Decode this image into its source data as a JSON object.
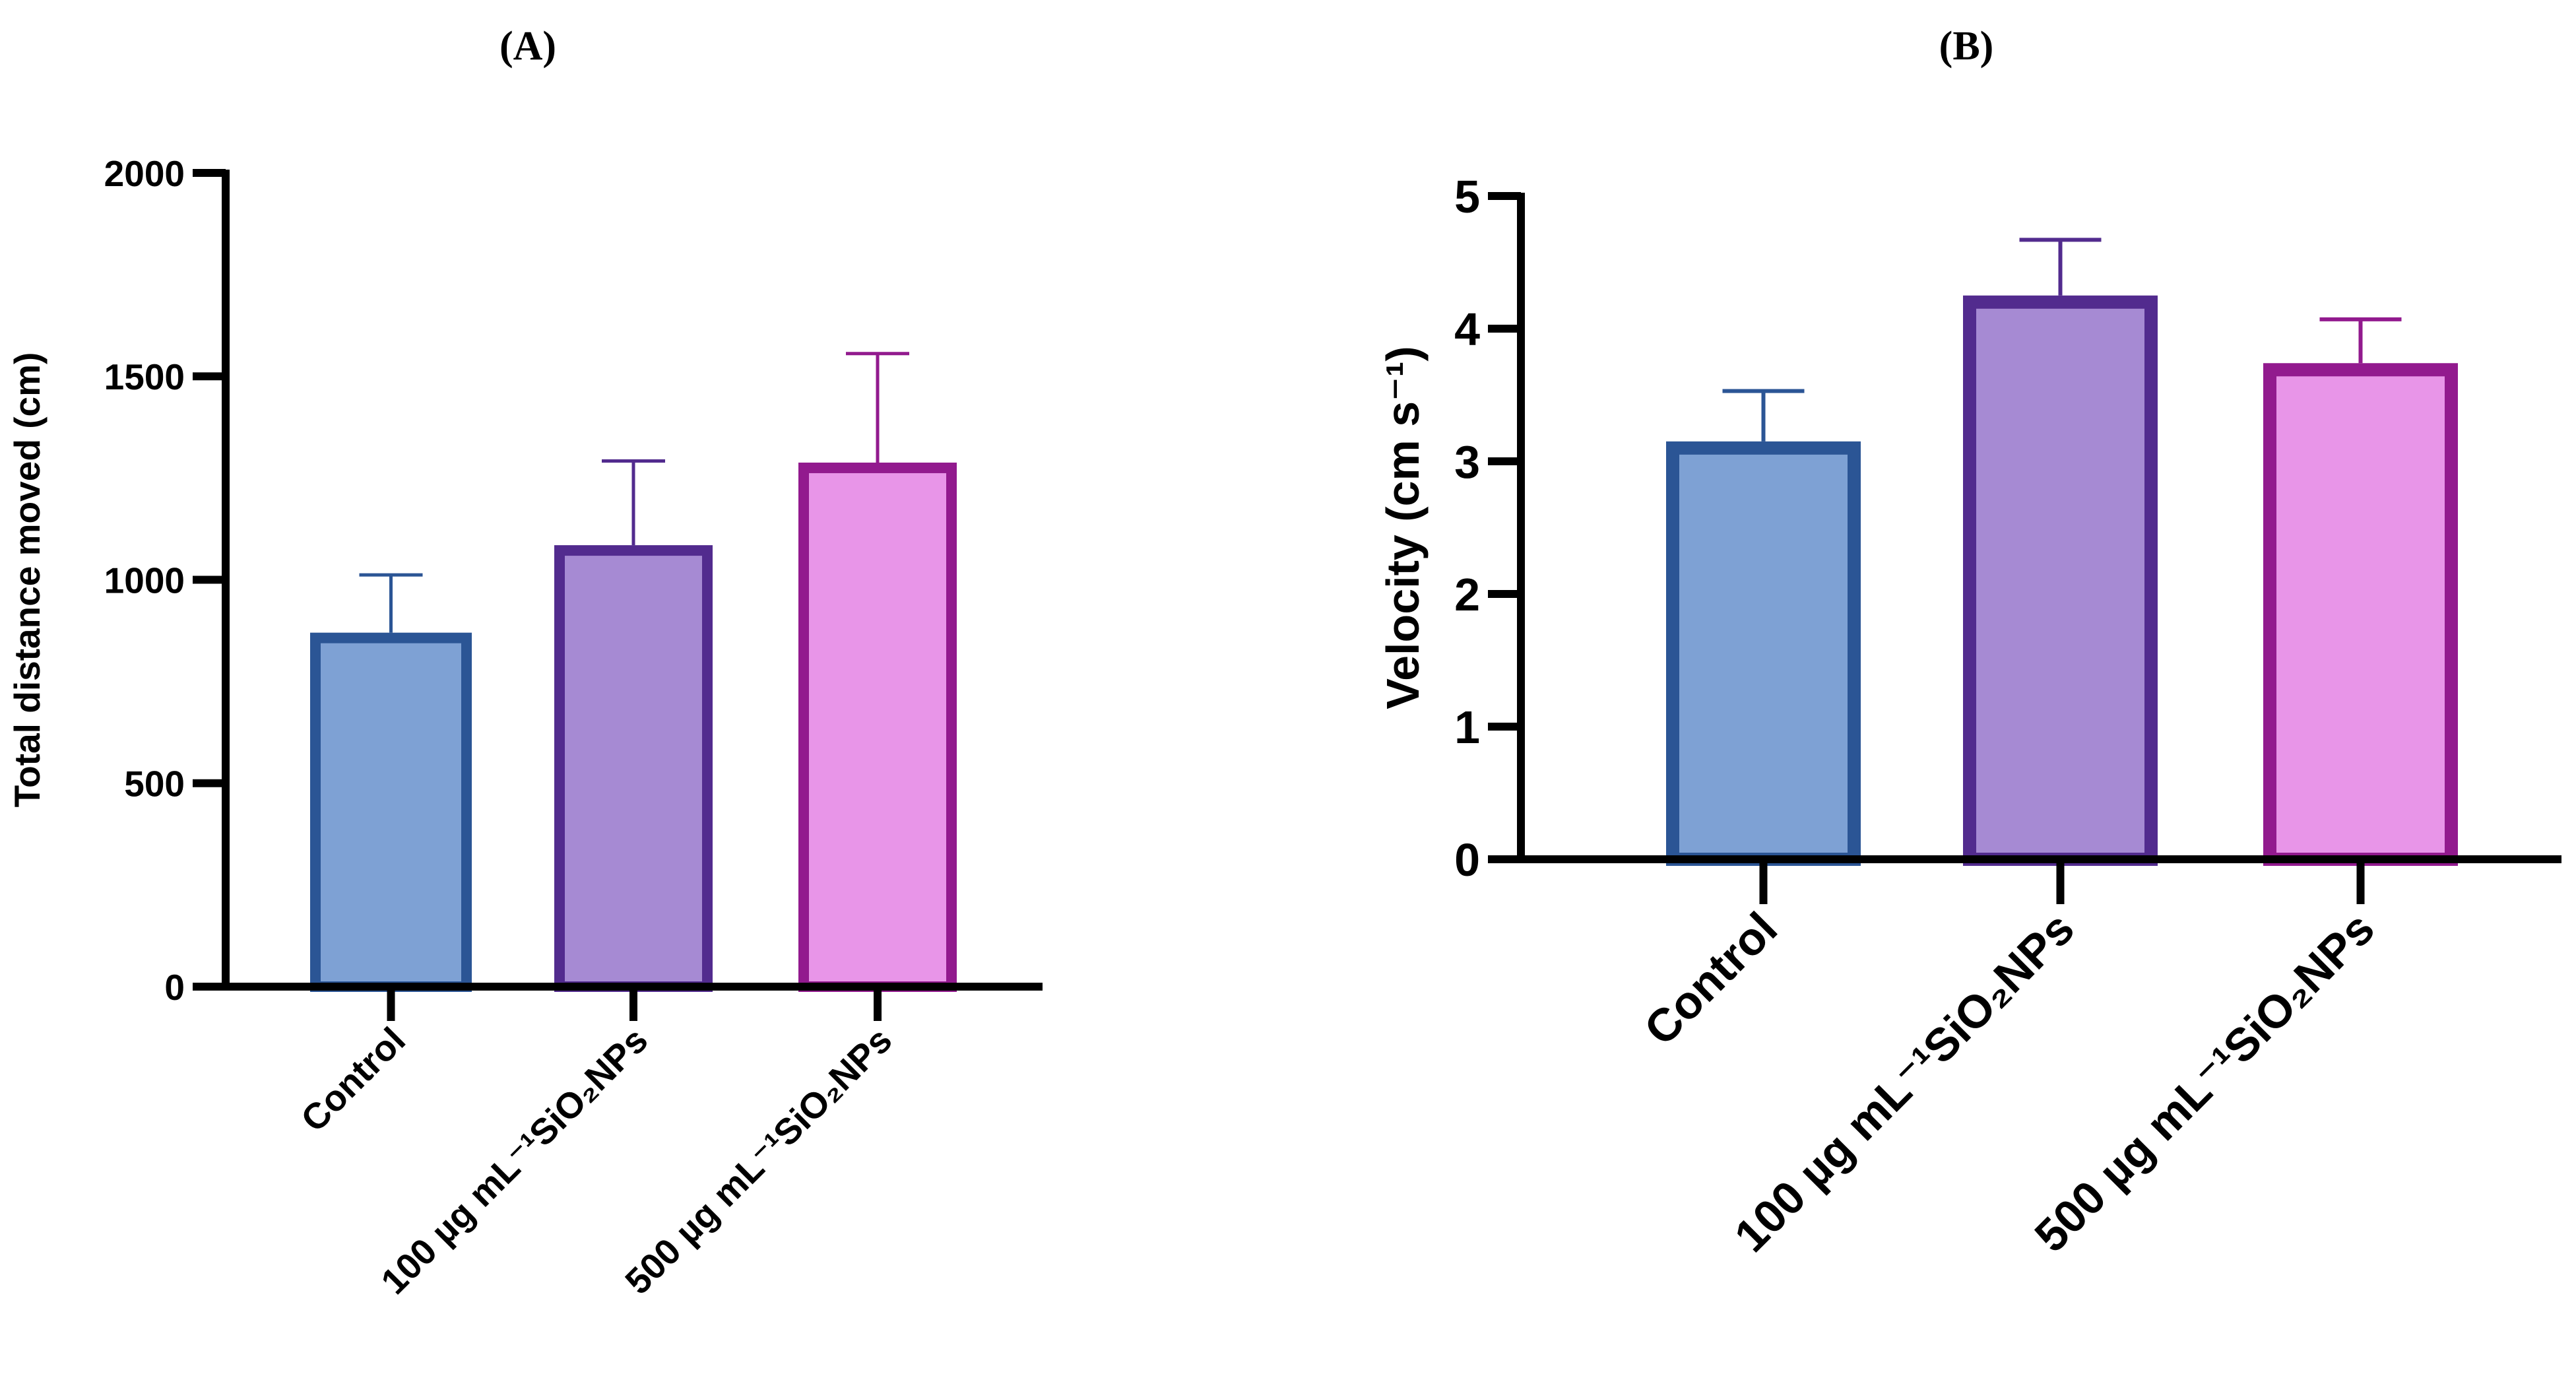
{
  "chart_data": [
    {
      "type": "bar",
      "panel": "(A)",
      "title": "",
      "xlabel": "",
      "ylabel": "Total distance moved (cm)",
      "ylim": [
        0,
        2000
      ],
      "yticks": [
        0,
        500,
        1000,
        1500,
        2000
      ],
      "categories": [
        "Control",
        "100 µg mL⁻¹SiO₂NPs",
        "500 µg mL⁻¹SiO₂NPs"
      ],
      "values": [
        870,
        1085,
        1288
      ],
      "error_upper": [
        1012,
        1292,
        1556
      ],
      "fill_colors": [
        "#7ea1d4",
        "#a68ad3",
        "#e895e8"
      ],
      "edge_colors": [
        "#2b5595",
        "#522b8e",
        "#921a8e"
      ],
      "grid": false
    },
    {
      "type": "bar",
      "panel": "(B)",
      "title": "",
      "xlabel": "",
      "ylabel": "Velocity (cm s⁻¹)",
      "ylim": [
        0,
        5
      ],
      "yticks": [
        0,
        1,
        2,
        3,
        4,
        5
      ],
      "categories": [
        "Control",
        "100 µg mL⁻¹SiO₂NPs",
        "500 µg mL⁻¹SiO₂NPs"
      ],
      "values": [
        3.15,
        4.25,
        3.74
      ],
      "error_upper": [
        3.53,
        4.67,
        4.07
      ],
      "fill_colors": [
        "#7ea1d4",
        "#a68ad3",
        "#e895e8"
      ],
      "edge_colors": [
        "#2b5595",
        "#522b8e",
        "#921a8e"
      ],
      "grid": false
    }
  ]
}
